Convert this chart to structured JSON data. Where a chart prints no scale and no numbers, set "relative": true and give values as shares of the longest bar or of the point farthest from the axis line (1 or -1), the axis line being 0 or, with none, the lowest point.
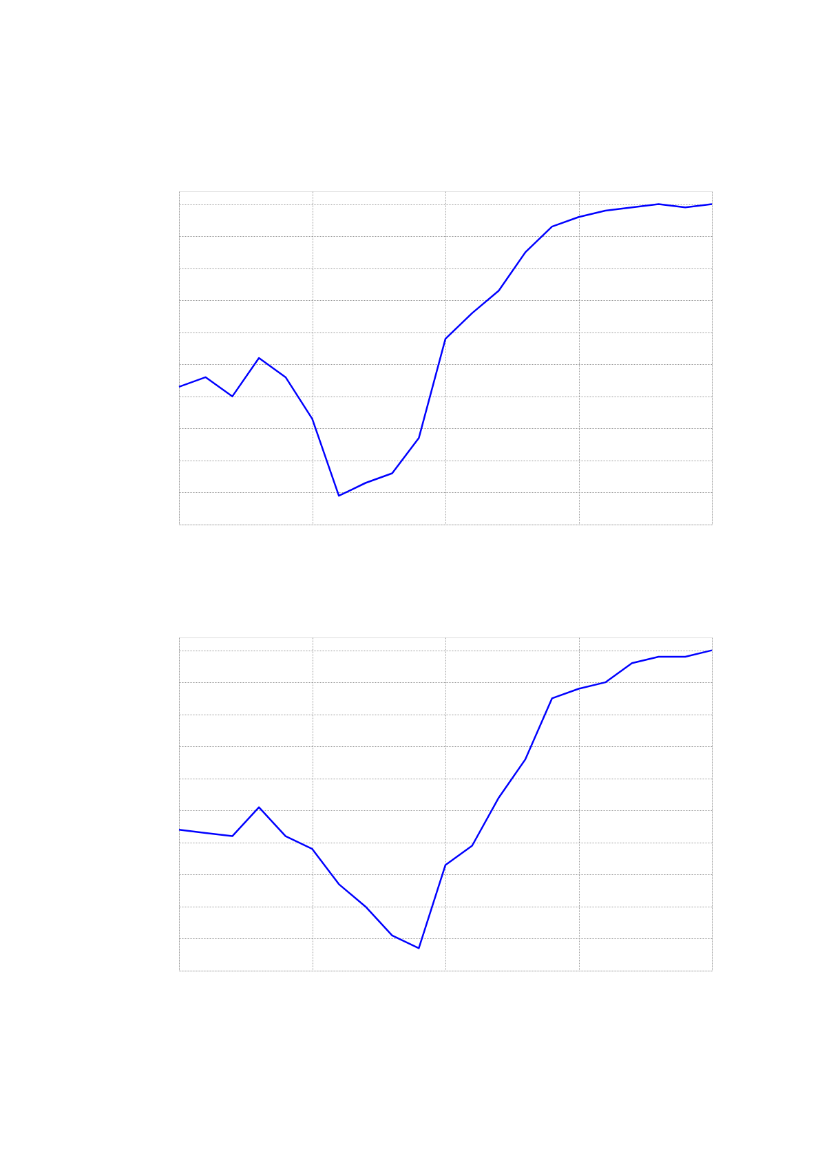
{
  "chart_data": [
    {
      "type": "line",
      "relative": true,
      "grid": true,
      "tick_labels": false,
      "categories": [
        null,
        null,
        null,
        null,
        null,
        null,
        null,
        null,
        null,
        null,
        null,
        null,
        null,
        null,
        null,
        null,
        null,
        null,
        null,
        null,
        null
      ],
      "series": [
        {
          "color": "#0000ff",
          "values": [
            0.43,
            0.46,
            0.4,
            0.52,
            0.46,
            0.33,
            0.09,
            0.13,
            0.16,
            0.27,
            0.58,
            0.66,
            0.73,
            0.85,
            0.93,
            0.96,
            0.98,
            0.99,
            1.0,
            0.99,
            1.0
          ]
        }
      ]
    },
    {
      "type": "line",
      "relative": true,
      "grid": true,
      "tick_labels": false,
      "categories": [
        null,
        null,
        null,
        null,
        null,
        null,
        null,
        null,
        null,
        null,
        null,
        null,
        null,
        null,
        null,
        null,
        null,
        null,
        null,
        null,
        null
      ],
      "series": [
        {
          "color": "#0000ff",
          "values": [
            0.44,
            0.43,
            0.42,
            0.51,
            0.42,
            0.38,
            0.27,
            0.2,
            0.11,
            0.07,
            0.33,
            0.39,
            0.54,
            0.66,
            0.85,
            0.88,
            0.9,
            0.96,
            0.98,
            0.98,
            1.0
          ]
        }
      ]
    }
  ]
}
